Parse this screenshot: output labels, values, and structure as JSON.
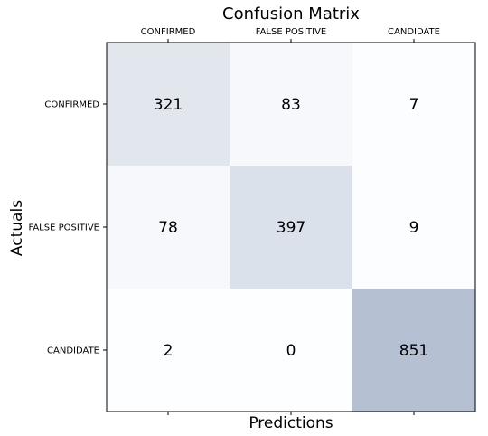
{
  "chart_data": {
    "type": "heatmap",
    "title": "Confusion Matrix",
    "xlabel": "Predictions",
    "ylabel": "Actuals",
    "x_categories": [
      "CONFIRMED",
      "FALSE POSITIVE",
      "CANDIDATE"
    ],
    "y_categories": [
      "CONFIRMED",
      "FALSE POSITIVE",
      "CANDIDATE"
    ],
    "x_tick_position": "top",
    "values": [
      [
        321,
        83,
        7
      ],
      [
        78,
        397,
        9
      ],
      [
        2,
        0,
        851
      ]
    ],
    "colormap": "Blues",
    "cell_alpha": 0.3,
    "colors": {
      "low": "#f7fbff",
      "high": "#08306b",
      "frame": "#000000",
      "text": "#000000"
    }
  }
}
